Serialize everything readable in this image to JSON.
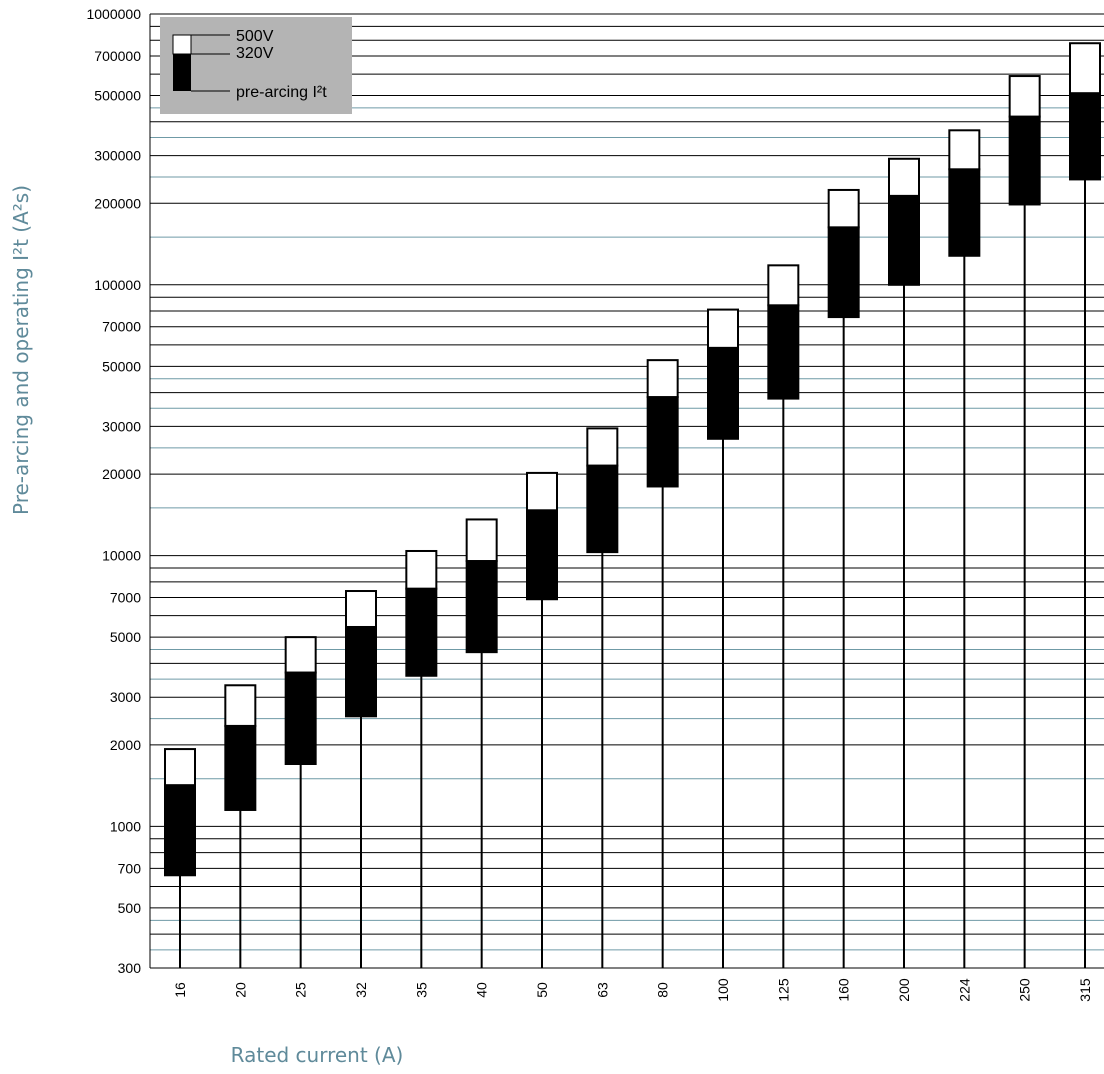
{
  "chart_data": {
    "type": "bar",
    "title": "",
    "xlabel": "Rated current (A)",
    "ylabel": "Pre-arcing and operating I²t (A²s)",
    "yscale": "log",
    "ylim": [
      300,
      1000000
    ],
    "y_tick_labels": [
      "1000000",
      "700000",
      "500000",
      "300000",
      "200000",
      "100000",
      "70000",
      "50000",
      "30000",
      "20000",
      "10000",
      "7000",
      "5000",
      "3000",
      "2000",
      "1000",
      "700",
      "500",
      "300"
    ],
    "categories": [
      "16",
      "20",
      "25",
      "32",
      "35",
      "40",
      "50",
      "63",
      "80",
      "100",
      "125",
      "160",
      "200",
      "224",
      "250",
      "315"
    ],
    "series": [
      {
        "name": "pre-arcing I²t",
        "values": [
          660,
          1150,
          1700,
          2550,
          3600,
          4400,
          6900,
          10300,
          18000,
          27000,
          38000,
          76000,
          100000,
          128000,
          198000,
          245000
        ]
      },
      {
        "name": "320V",
        "values": [
          1420,
          2350,
          3700,
          5450,
          7550,
          9550,
          14700,
          21500,
          38500,
          58500,
          84000,
          163000,
          213000,
          267000,
          418000,
          510000
        ]
      },
      {
        "name": "500V",
        "values": [
          1930,
          3320,
          5000,
          7400,
          10400,
          13600,
          20200,
          29500,
          52700,
          81000,
          118000,
          224000,
          292000,
          372000,
          590000,
          780000
        ]
      }
    ],
    "legend": {
      "position": "top-left",
      "entries": [
        "500V",
        "320V",
        "pre-arcing I²t"
      ]
    },
    "grid": true,
    "colors": {
      "band_320V": "#000000",
      "band_500V": "#ffffff",
      "grid_major": "#000000",
      "grid_minor": "#6f9aa6",
      "legend_bg": "#b4b4b4",
      "axis_title": "#5f8a9a"
    }
  }
}
